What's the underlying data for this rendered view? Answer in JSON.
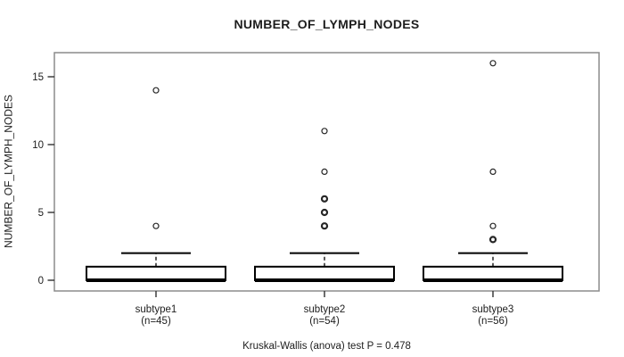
{
  "chart_data": {
    "type": "boxplot",
    "title": "NUMBER_OF_LYMPH_NODES",
    "ylabel": "NUMBER_OF_LYMPH_NODES",
    "xlabel": "",
    "caption": "Kruskal-Wallis (anova) test P = 0.478",
    "yticks": [
      0,
      5,
      10,
      15
    ],
    "ylim": [
      -0.8,
      16.8
    ],
    "grid": false,
    "legend_position": "none",
    "groups": [
      {
        "label": "subtype1",
        "count_label": "(n=45)",
        "n": 45,
        "stats": {
          "whisker_low": 0,
          "q1": 0,
          "median": 0,
          "q3": 1,
          "whisker_high": 2
        },
        "outliers": [
          {
            "value": 4,
            "bold": false
          },
          {
            "value": 14,
            "bold": false
          }
        ]
      },
      {
        "label": "subtype2",
        "count_label": "(n=54)",
        "n": 54,
        "stats": {
          "whisker_low": 0,
          "q1": 0,
          "median": 0,
          "q3": 1,
          "whisker_high": 2
        },
        "outliers": [
          {
            "value": 4,
            "bold": true
          },
          {
            "value": 5,
            "bold": true
          },
          {
            "value": 6,
            "bold": true
          },
          {
            "value": 8,
            "bold": false
          },
          {
            "value": 11,
            "bold": false
          }
        ]
      },
      {
        "label": "subtype3",
        "count_label": "(n=56)",
        "n": 56,
        "stats": {
          "whisker_low": 0,
          "q1": 0,
          "median": 0,
          "q3": 1,
          "whisker_high": 2
        },
        "outliers": [
          {
            "value": 3,
            "bold": true
          },
          {
            "value": 4,
            "bold": false
          },
          {
            "value": 8,
            "bold": false
          },
          {
            "value": 16,
            "bold": false
          }
        ]
      }
    ],
    "colors": {
      "box_fill": "#ffffff",
      "box_line": "#000000",
      "plot_border": "#8c8c8c",
      "tick": "#2f2f2f",
      "text": "#1d1d1d"
    }
  }
}
